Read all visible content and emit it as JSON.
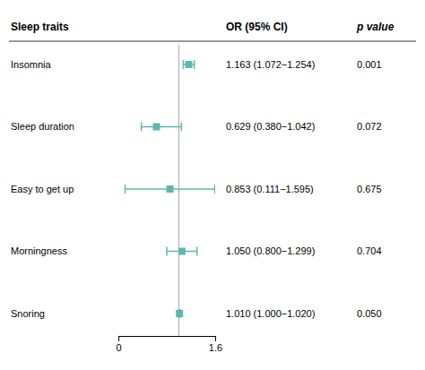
{
  "chart_data": {
    "type": "forest",
    "column_headers": [
      "Sleep traits",
      "OR (95% CI)",
      "p value"
    ],
    "categories": [
      "Insomnia",
      "Sleep duration",
      "Easy to get up",
      "Morningness",
      "Snoring"
    ],
    "values": [
      1.163,
      0.629,
      0.853,
      1.05,
      1.01
    ],
    "ci_low": [
      1.072,
      0.38,
      0.111,
      0.8,
      1.0
    ],
    "ci_high": [
      1.254,
      1.042,
      1.595,
      1.299,
      1.02
    ],
    "value_labels": [
      "1.163 (1.072−1.254)",
      "0.629 (0.380−1.042)",
      "0.853 (0.111−1.595)",
      "1.050 (0.800−1.299)",
      "1.010 (1.000−1.020)"
    ],
    "p_labels": [
      "0.001",
      "0.072",
      "0.675",
      "0.704",
      "0.050"
    ],
    "ref_line": 1.0,
    "color": "#5BB8B0",
    "xlim": [
      0.0,
      1.6
    ],
    "xticks": [
      0,
      1.6
    ],
    "grid": false
  }
}
